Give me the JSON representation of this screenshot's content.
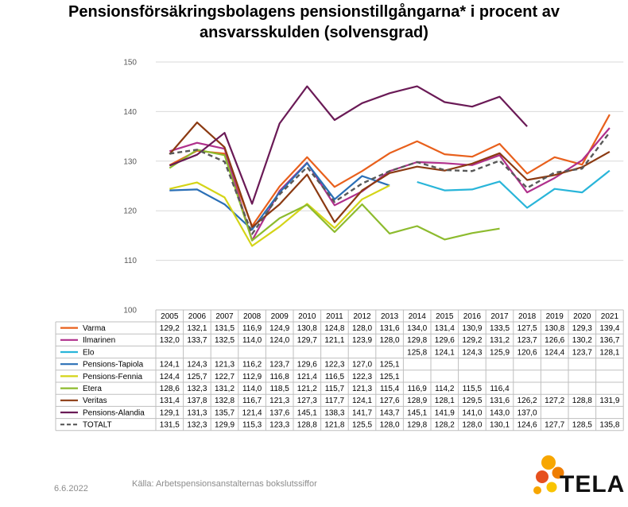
{
  "title_line1": "Pensionsförsäkringsbolagens pensionstillgångarna* i procent av",
  "title_line2": "ansvarsskulden (solvensgrad)",
  "footer": {
    "date": "6.6.2022",
    "source": "Källa: Arbetspensionsanstalternas bokslutssiffor"
  },
  "logo": {
    "text": "TELA",
    "dot_colors": [
      "#f7a600",
      "#ef7d00",
      "#e6501e",
      "#f9c400"
    ]
  },
  "chart_data": {
    "type": "line",
    "ylim": [
      100,
      150
    ],
    "yticks": [
      100,
      110,
      120,
      130,
      140,
      150
    ],
    "grid": true,
    "categories": [
      "2005",
      "2006",
      "2007",
      "2008",
      "2009",
      "2010",
      "2011",
      "2012",
      "2013",
      "2014",
      "2015",
      "2016",
      "2017",
      "2018",
      "2019",
      "2020",
      "2021"
    ],
    "series": [
      {
        "name": "Varma",
        "color": "#e8601c",
        "dash": false,
        "values": [
          "129,2",
          "132,1",
          "131,5",
          "116,9",
          "124,9",
          "130,8",
          "124,8",
          "128,0",
          "131,6",
          "134,0",
          "131,4",
          "130,9",
          "133,5",
          "127,5",
          "130,8",
          "129,3",
          "139,4"
        ]
      },
      {
        "name": "Ilmarinen",
        "color": "#b0308c",
        "dash": false,
        "values": [
          "132,0",
          "133,7",
          "132,5",
          "114,0",
          "124,0",
          "129,7",
          "121,1",
          "123,9",
          "128,0",
          "129,8",
          "129,6",
          "129,2",
          "131,2",
          "123,7",
          "126,6",
          "130,2",
          "136,7"
        ]
      },
      {
        "name": "Elo",
        "color": "#29b5d9",
        "dash": false,
        "values": [
          null,
          null,
          null,
          null,
          null,
          null,
          null,
          null,
          null,
          "125,8",
          "124,1",
          "124,3",
          "125,9",
          "120,6",
          "124,4",
          "123,7",
          "128,1"
        ]
      },
      {
        "name": "Pensions-Tapiola",
        "color": "#2a6fb6",
        "dash": false,
        "values": [
          "124,1",
          "124,3",
          "121,3",
          "116,2",
          "123,7",
          "129,6",
          "122,3",
          "127,0",
          "125,1",
          null,
          null,
          null,
          null,
          null,
          null,
          null,
          null
        ]
      },
      {
        "name": "Pensions-Fennia",
        "color": "#d4d417",
        "dash": false,
        "values": [
          "124,4",
          "125,7",
          "122,7",
          "112,9",
          "116,8",
          "121,4",
          "116,5",
          "122,3",
          "125,1",
          null,
          null,
          null,
          null,
          null,
          null,
          null,
          null
        ]
      },
      {
        "name": "Etera",
        "color": "#8dbb2e",
        "dash": false,
        "values": [
          "128,6",
          "132,3",
          "131,2",
          "114,0",
          "118,5",
          "121,2",
          "115,7",
          "121,3",
          "115,4",
          "116,9",
          "114,2",
          "115,5",
          "116,4",
          null,
          null,
          null,
          null
        ]
      },
      {
        "name": "Veritas",
        "color": "#8b3a12",
        "dash": false,
        "values": [
          "131,4",
          "137,8",
          "132,8",
          "116,7",
          "121,3",
          "127,3",
          "117,7",
          "124,1",
          "127,6",
          "128,9",
          "128,1",
          "129,5",
          "131,6",
          "126,2",
          "127,2",
          "128,8",
          "131,9"
        ]
      },
      {
        "name": "Pensions-Alandia",
        "color": "#6a1a56",
        "dash": false,
        "values": [
          "129,1",
          "131,3",
          "135,7",
          "121,4",
          "137,6",
          "145,1",
          "138,3",
          "141,7",
          "143,7",
          "145,1",
          "141,9",
          "141,0",
          "143,0",
          "137,0",
          null,
          null,
          null
        ]
      },
      {
        "name": "TOTALT",
        "color": "#595959",
        "dash": true,
        "values": [
          "131,5",
          "132,3",
          "129,9",
          "115,3",
          "123,3",
          "128,8",
          "121,8",
          "125,5",
          "128,0",
          "129,8",
          "128,2",
          "128,0",
          "130,1",
          "124,6",
          "127,7",
          "128,5",
          "135,8"
        ]
      }
    ]
  }
}
